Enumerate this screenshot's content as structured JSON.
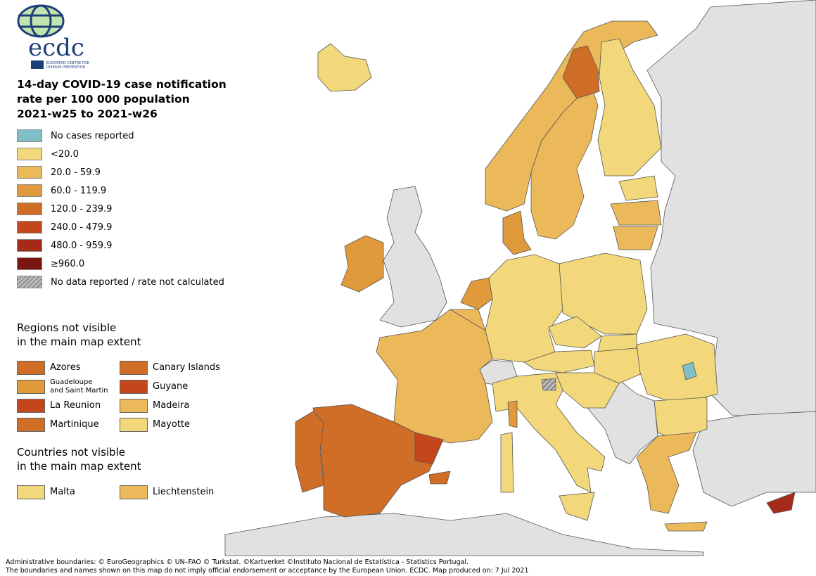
{
  "logo": {
    "text": "ecdc",
    "subtitle": "EUROPEAN CENTRE FOR DISEASE PREVENTION AND CONTROL"
  },
  "title": "14-day COVID-19 case notification\nrate per 100 000 population\n2021-w25 to 2021-w26",
  "legend": [
    {
      "key": "none",
      "label": "No cases reported",
      "color": "#7fbfc5"
    },
    {
      "key": "c1",
      "label": "<20.0",
      "color": "#f2d87a"
    },
    {
      "key": "c2",
      "label": "20.0 - 59.9",
      "color": "#ebb95a"
    },
    {
      "key": "c3",
      "label": "60.0 - 119.9",
      "color": "#e09a3c"
    },
    {
      "key": "c4",
      "label": "120.0 - 239.9",
      "color": "#d06d27"
    },
    {
      "key": "c5",
      "label": "240.0 - 479.9",
      "color": "#c4461b"
    },
    {
      "key": "c6",
      "label": "480.0 - 959.9",
      "color": "#a62a1a"
    },
    {
      "key": "c7",
      "label": "≥960.0",
      "color": "#7a1510"
    },
    {
      "key": "nodata",
      "label": "No data reported / rate not calculated",
      "color": "hatched-grey"
    }
  ],
  "non_eu_color": "#e1e1e1",
  "regions_section": {
    "title": "Regions not visible\nin the main map extent",
    "items": [
      {
        "label": "Azores",
        "cat": "c4"
      },
      {
        "label": "Canary Islands",
        "cat": "c4"
      },
      {
        "label": "Guadeloupe\nand Saint Martin",
        "cat": "c3"
      },
      {
        "label": "Guyane",
        "cat": "c5"
      },
      {
        "label": "La Reunion",
        "cat": "c5"
      },
      {
        "label": "Madeira",
        "cat": "c2"
      },
      {
        "label": "Martinique",
        "cat": "c4"
      },
      {
        "label": "Mayotte",
        "cat": "c1"
      }
    ]
  },
  "countries_section": {
    "title": "Countries not visible\nin the main map extent",
    "items": [
      {
        "label": "Malta",
        "cat": "c1"
      },
      {
        "label": "Liechtenstein",
        "cat": "c2"
      }
    ]
  },
  "footer": {
    "line1": "Administrative boundaries: © EuroGeographics © UN–FAO © Turkstat. ©Kartverket ©Instituto Nacional de Estatística - Statistics Portugal.",
    "line2": "The boundaries and names shown on this map do not imply official endorsement or acceptance by the European Union. ECDC. Map produced on: 7 Jul 2021"
  }
}
